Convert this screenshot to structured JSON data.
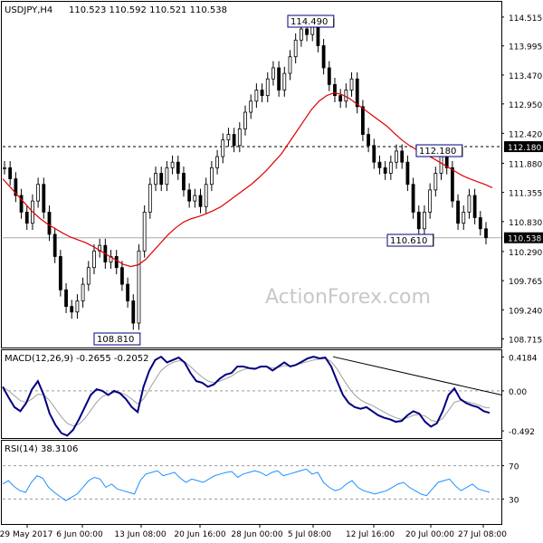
{
  "window": {
    "symbol_header": "USDJPY,H4",
    "ohlc_header": "110.523 110.592 110.521 110.538",
    "watermark": "ActionForex.com"
  },
  "colors": {
    "candle": "#000000",
    "moving_average": "#e00000",
    "macd_line": "#00007f",
    "macd_signal": "#a0a0a0",
    "rsi_line": "#1e90ff",
    "annotation_line": "#000000",
    "watermark": "#c8c8c8"
  },
  "chart_data": [
    {
      "type": "candlestick",
      "title": "USDJPY,H4",
      "series": [
        {
          "name": "price",
          "values": [
            111.8,
            111.6,
            111.3,
            111.0,
            110.8,
            111.2,
            111.5,
            111.0,
            110.6,
            110.2,
            109.6,
            109.3,
            109.2,
            109.4,
            109.7,
            110.0,
            110.3,
            110.4,
            110.1,
            110.2,
            110.0,
            109.7,
            109.4,
            109.0,
            110.3,
            111.0,
            111.5,
            111.7,
            111.5,
            111.8,
            111.9,
            111.7,
            111.4,
            111.2,
            111.3,
            111.1,
            111.5,
            111.8,
            112.0,
            112.3,
            112.4,
            112.2,
            112.5,
            112.8,
            113.0,
            113.2,
            113.1,
            113.4,
            113.6,
            113.2,
            113.5,
            113.8,
            114.1,
            114.3,
            114.2,
            114.4,
            114.0,
            113.6,
            113.3,
            113.1,
            113.0,
            113.2,
            113.4,
            112.9,
            112.4,
            112.2,
            111.9,
            111.8,
            111.7,
            111.9,
            112.1,
            111.9,
            111.5,
            111.0,
            110.7,
            111.0,
            111.4,
            111.7,
            112.0,
            111.8,
            111.2,
            110.8,
            111.0,
            111.3,
            110.9,
            110.7,
            110.54
          ]
        },
        {
          "name": "moving_average",
          "values": [
            111.6,
            111.45,
            111.3,
            111.15,
            111.0,
            110.88,
            110.78,
            110.7,
            110.62,
            110.55,
            110.5,
            110.45,
            110.38,
            110.3,
            110.22,
            110.14,
            110.06,
            110.02,
            110.05,
            110.15,
            110.3,
            110.45,
            110.6,
            110.72,
            110.82,
            110.88,
            110.92,
            110.97,
            111.03,
            111.1,
            111.2,
            111.3,
            111.4,
            111.5,
            111.62,
            111.75,
            111.9,
            112.05,
            112.25,
            112.45,
            112.65,
            112.85,
            113.0,
            113.1,
            113.15,
            113.12,
            113.05,
            112.95,
            112.85,
            112.75,
            112.65,
            112.55,
            112.42,
            112.3,
            112.2,
            112.12,
            112.05,
            111.98,
            111.9,
            111.82,
            111.74,
            111.66,
            111.6,
            111.55,
            111.5,
            111.44
          ]
        }
      ],
      "annotations": [
        {
          "text": "114.490",
          "x": "5 Jul 08:00",
          "y": 114.49
        },
        {
          "text": "108.810",
          "x": "13 Jun 08:00",
          "y": 108.81
        },
        {
          "text": "112.180",
          "x": "20 Jul 00:00",
          "y": 112.18
        },
        {
          "text": "110.610",
          "x": "20 Jul 00:00",
          "y": 110.61
        }
      ],
      "horizontal_lines": [
        {
          "y": 112.18,
          "style": "dashed"
        },
        {
          "y": 110.538,
          "style": "solid"
        }
      ],
      "y_highlights": [
        "112.180",
        "110.538"
      ],
      "yticks": [
        "114.515",
        "113.995",
        "113.470",
        "112.950",
        "112.420",
        "111.880",
        "111.355",
        "110.830",
        "110.290",
        "109.765",
        "109.240",
        "108.715"
      ],
      "ylim": [
        108.56,
        114.79
      ]
    },
    {
      "type": "line",
      "title": "MACD(12,26,9) -0.2655 -0.2052",
      "series": [
        {
          "name": "MACD",
          "values": [
            0.05,
            -0.08,
            -0.2,
            -0.25,
            -0.15,
            0.02,
            0.12,
            -0.05,
            -0.28,
            -0.42,
            -0.52,
            -0.55,
            -0.48,
            -0.35,
            -0.2,
            -0.05,
            0.02,
            0.0,
            -0.05,
            0.0,
            -0.03,
            -0.1,
            -0.2,
            -0.26,
            0.05,
            0.25,
            0.38,
            0.42,
            0.35,
            0.38,
            0.41,
            0.35,
            0.22,
            0.12,
            0.1,
            0.05,
            0.08,
            0.15,
            0.2,
            0.22,
            0.3,
            0.3,
            0.28,
            0.27,
            0.3,
            0.3,
            0.25,
            0.3,
            0.35,
            0.3,
            0.32,
            0.36,
            0.4,
            0.42,
            0.4,
            0.41,
            0.3,
            0.12,
            -0.05,
            -0.15,
            -0.2,
            -0.22,
            -0.2,
            -0.25,
            -0.3,
            -0.33,
            -0.35,
            -0.38,
            -0.37,
            -0.3,
            -0.25,
            -0.28,
            -0.38,
            -0.44,
            -0.4,
            -0.25,
            -0.05,
            0.03,
            -0.1,
            -0.15,
            -0.18,
            -0.2,
            -0.25,
            -0.27
          ]
        },
        {
          "name": "signal",
          "values": [
            0.05,
            0.0,
            -0.06,
            -0.12,
            -0.14,
            -0.1,
            -0.04,
            -0.05,
            -0.12,
            -0.22,
            -0.32,
            -0.4,
            -0.43,
            -0.41,
            -0.34,
            -0.24,
            -0.14,
            -0.07,
            -0.04,
            -0.02,
            -0.02,
            -0.05,
            -0.1,
            -0.16,
            -0.1,
            0.02,
            0.14,
            0.25,
            0.31,
            0.35,
            0.37,
            0.36,
            0.3,
            0.23,
            0.17,
            0.12,
            0.1,
            0.12,
            0.15,
            0.18,
            0.23,
            0.26,
            0.28,
            0.28,
            0.29,
            0.3,
            0.28,
            0.29,
            0.31,
            0.31,
            0.32,
            0.34,
            0.36,
            0.38,
            0.39,
            0.4,
            0.36,
            0.27,
            0.15,
            0.04,
            -0.05,
            -0.11,
            -0.15,
            -0.18,
            -0.22,
            -0.26,
            -0.3,
            -0.33,
            -0.35,
            -0.33,
            -0.3,
            -0.29,
            -0.31,
            -0.36,
            -0.38,
            -0.34,
            -0.24,
            -0.14,
            -0.12,
            -0.13,
            -0.15,
            -0.17,
            -0.2,
            -0.21
          ]
        }
      ],
      "trendline": {
        "from": {
          "x": "5 Jul 08:00",
          "y": 0.42
        },
        "to": {
          "x": "27 Jul 08:00",
          "y": -0.05
        }
      },
      "yticks": [
        "0.4184",
        "0.00",
        "-0.492"
      ],
      "ylim": [
        -0.58,
        0.5
      ]
    },
    {
      "type": "line",
      "title": "RSI(14) 38.3106",
      "series": [
        {
          "name": "RSI",
          "values": [
            48,
            52,
            45,
            40,
            38,
            50,
            58,
            55,
            44,
            38,
            33,
            28,
            32,
            36,
            44,
            52,
            56,
            54,
            44,
            48,
            42,
            40,
            38,
            36,
            52,
            60,
            62,
            64,
            58,
            60,
            62,
            55,
            50,
            54,
            52,
            50,
            54,
            58,
            60,
            62,
            63,
            56,
            60,
            62,
            64,
            62,
            58,
            62,
            64,
            58,
            60,
            62,
            64,
            66,
            60,
            62,
            50,
            44,
            40,
            42,
            48,
            52,
            44,
            40,
            38,
            36,
            38,
            40,
            44,
            48,
            50,
            44,
            40,
            36,
            34,
            42,
            50,
            52,
            54,
            46,
            40,
            44,
            48,
            42,
            40,
            38
          ]
        }
      ],
      "reference_lines": [
        70,
        30
      ],
      "yticks": [
        "70",
        "30"
      ],
      "ylim": [
        0,
        100
      ]
    }
  ],
  "x_axis": {
    "ticks": [
      "29 May 2017",
      "6 Jun 00:00",
      "13 Jun 08:00",
      "20 Jun 16:00",
      "28 Jun 00:00",
      "5 Jul 08:00",
      "12 Jul 16:00",
      "20 Jul 00:00",
      "27 Jul 08:00"
    ]
  }
}
